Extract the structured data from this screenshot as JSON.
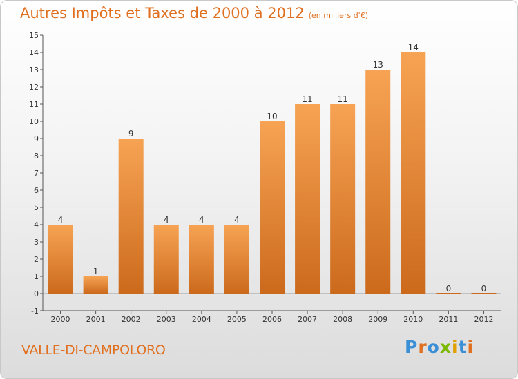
{
  "header": {
    "title": "Autres Impôts et Taxes de 2000 à 2012",
    "unit": "(en milliers d'€)"
  },
  "footer": {
    "commune": "VALLE-DI-CAMPOLORO",
    "brand": "Proxiti"
  },
  "colors": {
    "accent": "#e07020",
    "bar_top": "#f7a354",
    "bar_bottom": "#cc6a1c"
  },
  "chart_data": {
    "type": "bar",
    "title": "Autres Impôts et Taxes de 2000 à 2012",
    "subtitle": "(en milliers d'€)",
    "categories": [
      "2000",
      "2001",
      "2002",
      "2003",
      "2004",
      "2005",
      "2006",
      "2007",
      "2008",
      "2009",
      "2010",
      "2011",
      "2012"
    ],
    "values": [
      4,
      1,
      9,
      4,
      4,
      4,
      10,
      11,
      11,
      13,
      14,
      0,
      0
    ],
    "data_labels": [
      "4",
      "1",
      "9",
      "4",
      "4",
      "4",
      "10",
      "11",
      "11",
      "13",
      "14",
      "0",
      "0"
    ],
    "yticks": [
      -1,
      0,
      1,
      2,
      3,
      4,
      5,
      6,
      7,
      8,
      9,
      10,
      11,
      12,
      13,
      14,
      15
    ],
    "ylim": [
      -1,
      15
    ],
    "grid": false,
    "legend": "none"
  }
}
